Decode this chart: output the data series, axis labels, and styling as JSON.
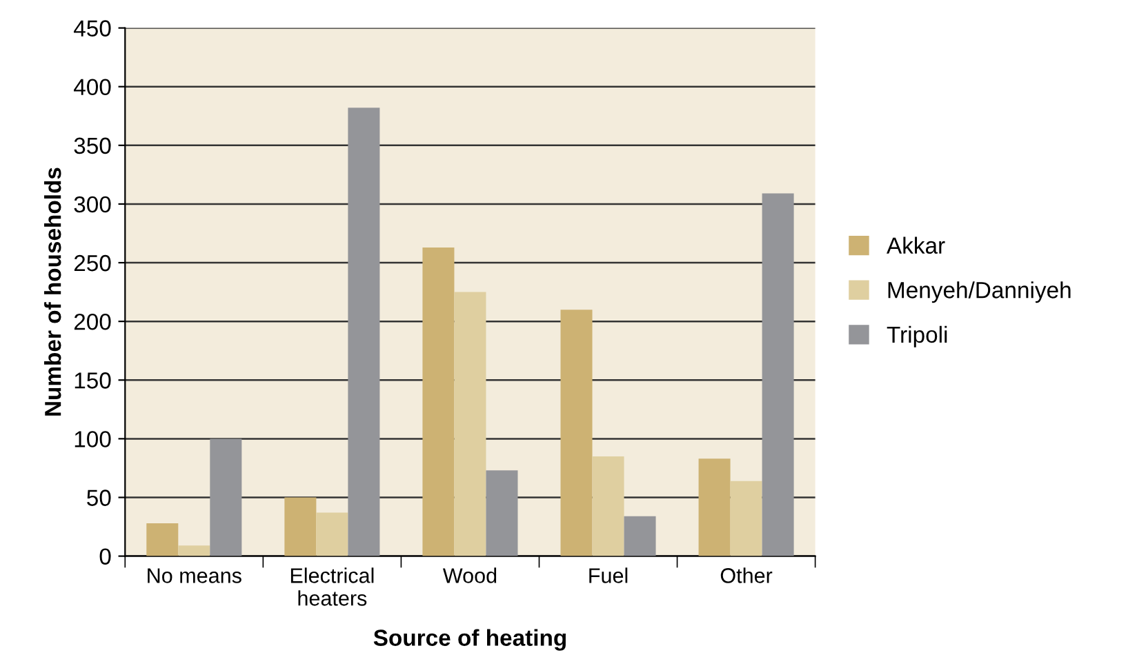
{
  "chart_data": {
    "type": "bar",
    "xlabel": "Source of heating",
    "ylabel": "Number of households",
    "categories": [
      "No means",
      "Electrical\nheaters",
      "Wood",
      "Fuel",
      "Other"
    ],
    "series": [
      {
        "name": "Akkar",
        "color": "#cdb273",
        "values": [
          28,
          50,
          263,
          210,
          83
        ]
      },
      {
        "name": "Menyeh/Danniyeh",
        "color": "#dfcfa0",
        "values": [
          9,
          37,
          225,
          85,
          64
        ]
      },
      {
        "name": "Tripoli",
        "color": "#949599",
        "values": [
          100,
          382,
          73,
          34,
          309
        ]
      }
    ],
    "ylim": [
      0,
      450
    ],
    "yticks": [
      0,
      50,
      100,
      150,
      200,
      250,
      300,
      350,
      400,
      450
    ],
    "grid": "y",
    "legend": "right"
  }
}
